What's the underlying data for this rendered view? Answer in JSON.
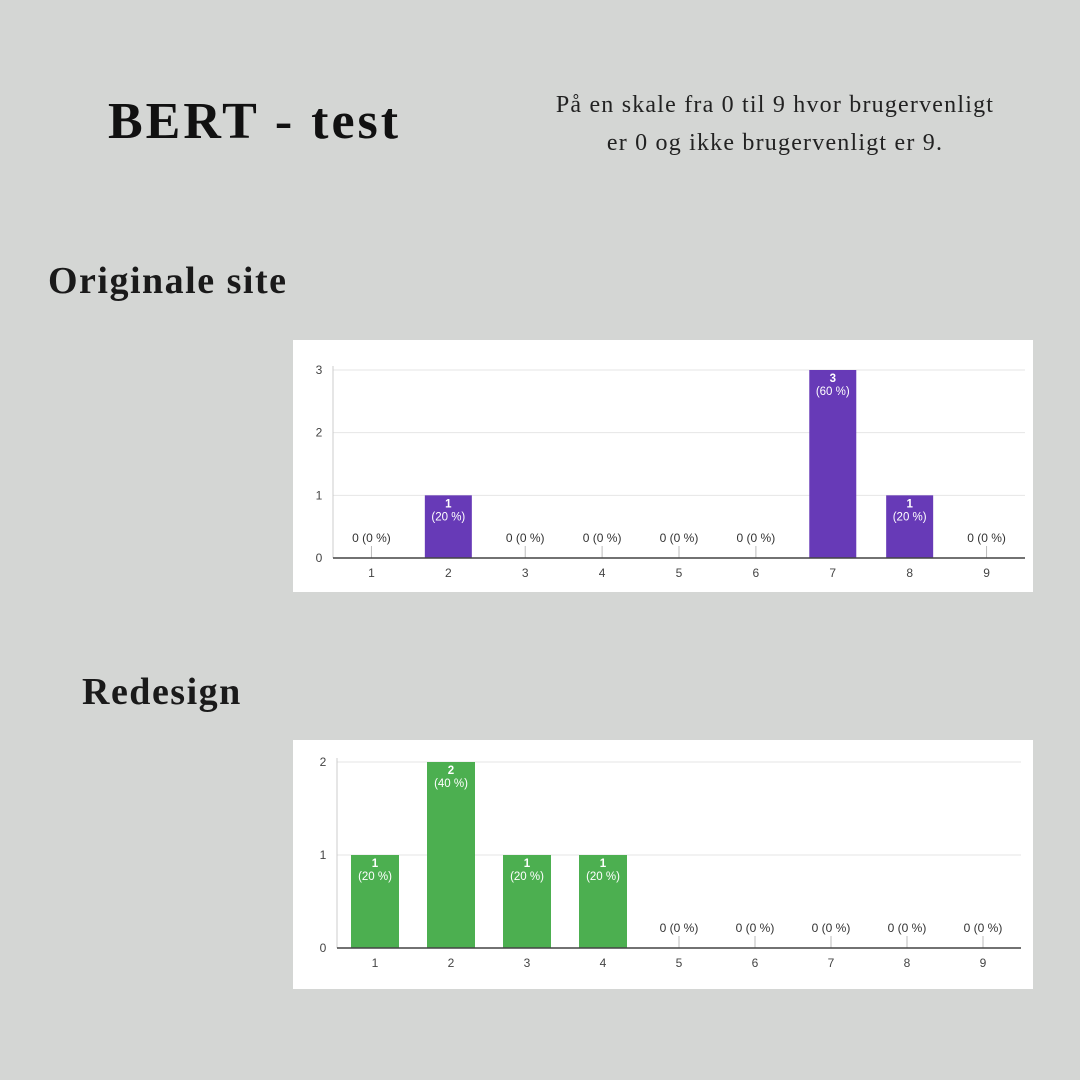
{
  "header": {
    "title": "BERT - test",
    "subtitle_line1": "På en skale fra 0 til 9 hvor brugervenligt",
    "subtitle_line2": "er 0 og ikke brugervenligt er 9."
  },
  "sections": {
    "original_label": "Originale site",
    "redesign_label": "Redesign"
  },
  "chart_data": [
    {
      "type": "bar",
      "categories": [
        "1",
        "2",
        "3",
        "4",
        "5",
        "6",
        "7",
        "8",
        "9"
      ],
      "values": [
        0,
        1,
        0,
        0,
        0,
        0,
        3,
        1,
        0
      ],
      "data_labels": [
        [
          "0 (0 %)"
        ],
        [
          "1",
          "(20 %)"
        ],
        [
          "0 (0 %)"
        ],
        [
          "0 (0 %)"
        ],
        [
          "0 (0 %)"
        ],
        [
          "0 (0 %)"
        ],
        [
          "3",
          "(60 %)"
        ],
        [
          "1",
          "(20 %)"
        ],
        [
          "0 (0 %)"
        ]
      ],
      "ylim": [
        0,
        3
      ],
      "yticks": [
        0,
        1,
        2,
        3
      ],
      "grid": true,
      "color": "#673ab7"
    },
    {
      "type": "bar",
      "categories": [
        "1",
        "2",
        "3",
        "4",
        "5",
        "6",
        "7",
        "8",
        "9"
      ],
      "values": [
        1,
        2,
        1,
        1,
        0,
        0,
        0,
        0,
        0
      ],
      "data_labels": [
        [
          "1",
          "(20 %)"
        ],
        [
          "2",
          "(40 %)"
        ],
        [
          "1",
          "(20 %)"
        ],
        [
          "1",
          "(20 %)"
        ],
        [
          "0 (0 %)"
        ],
        [
          "0 (0 %)"
        ],
        [
          "0 (0 %)"
        ],
        [
          "0 (0 %)"
        ],
        [
          "0 (0 %)"
        ]
      ],
      "ylim": [
        0,
        2
      ],
      "yticks": [
        0,
        1,
        2
      ],
      "grid": true,
      "color": "#4caf50"
    }
  ]
}
